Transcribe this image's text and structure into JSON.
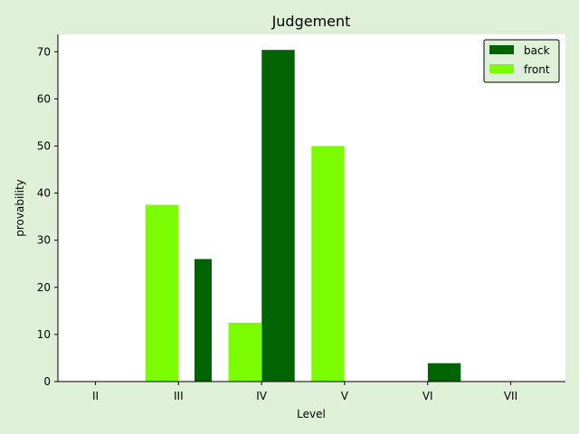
{
  "chart_data": {
    "type": "bar",
    "title": "Judgement",
    "xlabel": "Level",
    "ylabel": "provability",
    "categories": [
      "II",
      "III",
      "IV",
      "V",
      "VI",
      "VII"
    ],
    "ylim": [
      0,
      73.7
    ],
    "yticks": [
      0,
      10,
      20,
      30,
      40,
      50,
      60,
      70
    ],
    "grid": false,
    "legend_position": "top-right",
    "series": [
      {
        "name": "back",
        "color": "#006400",
        "values": [
          0,
          26.0,
          70.4,
          0,
          3.9,
          0
        ]
      },
      {
        "name": "front",
        "color": "#7cfc00",
        "values": [
          0,
          37.5,
          12.5,
          50.0,
          0,
          0
        ]
      }
    ]
  }
}
